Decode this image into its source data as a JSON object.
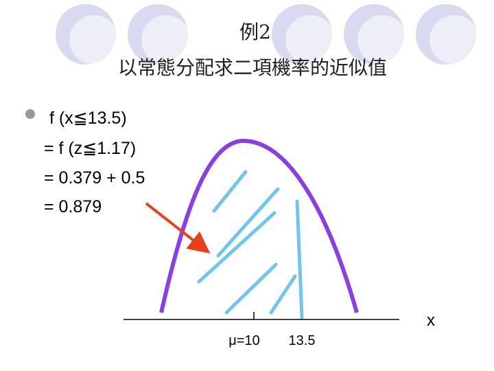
{
  "title": {
    "line1": "例2",
    "line2": "以常態分配求二項機率的近似值"
  },
  "bullet": {
    "lines": [
      "f (x≦13.5)",
      "= f (z≦1.17)",
      "= 0.379 + 0.5",
      "= 0.879"
    ]
  },
  "diagram": {
    "mean_label": "μ=10",
    "point_label": "13.5",
    "axis_label": "x"
  }
}
